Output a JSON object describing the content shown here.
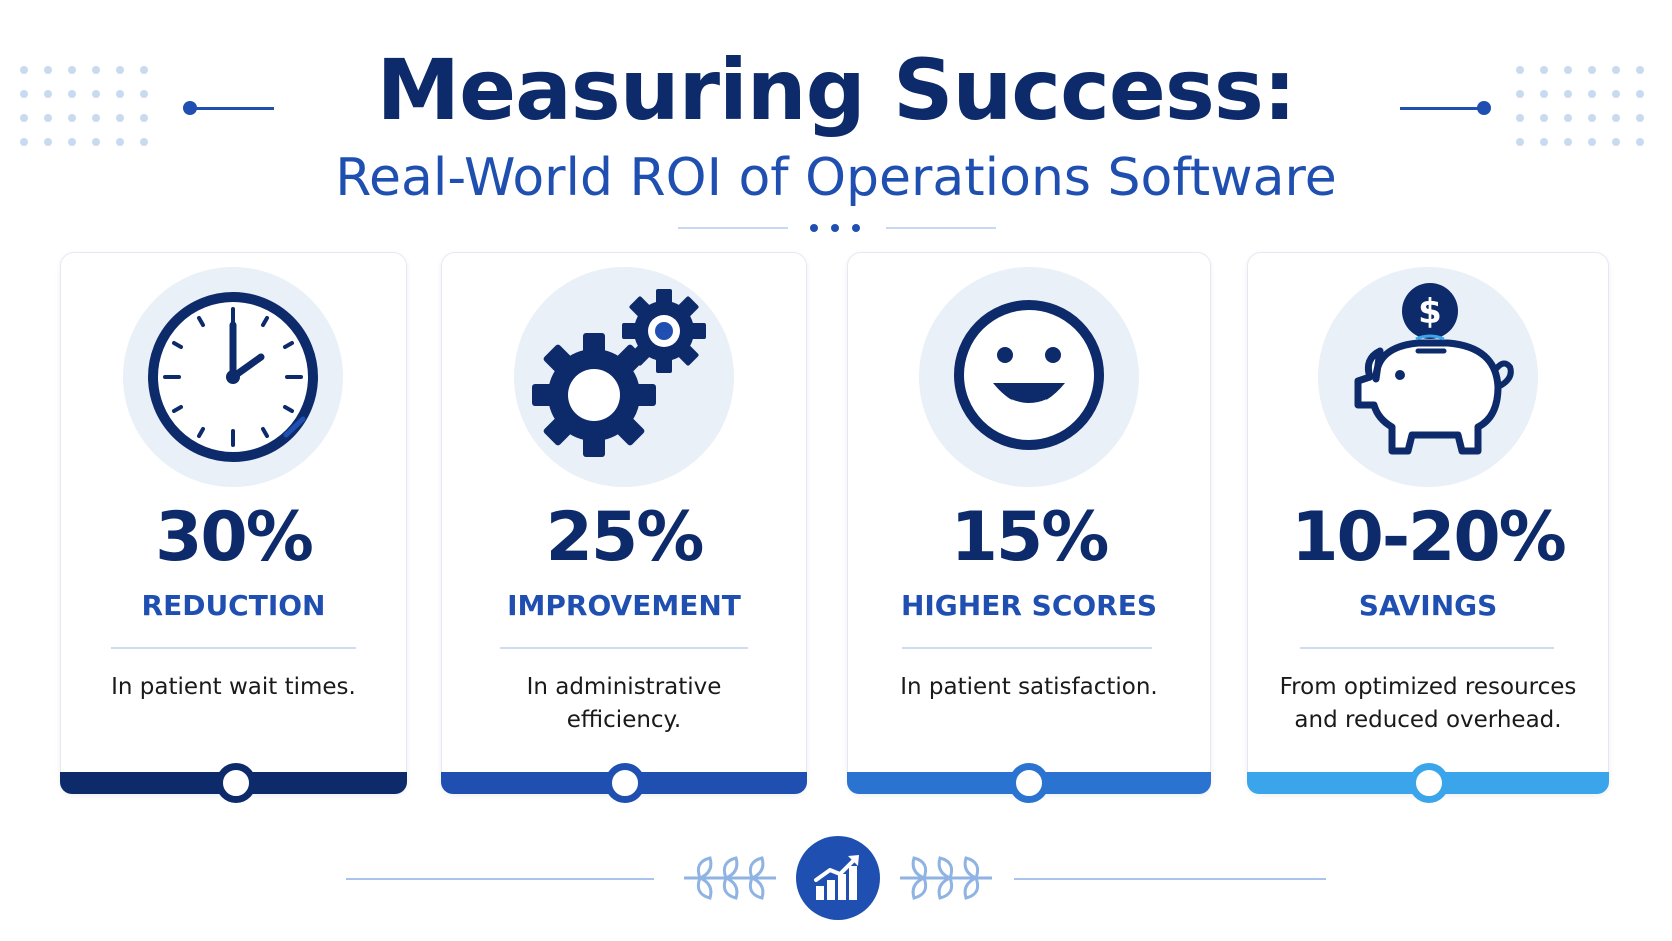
{
  "header": {
    "title": "Measuring Success:",
    "subtitle": "Real-World ROI of Operations Software"
  },
  "colors": {
    "navy": "#0d2a6b",
    "blue": "#1f4fb0",
    "light_circle": "#eaf0f8",
    "bar_colors": [
      "#0d2a6b",
      "#1f4fb0",
      "#2a73d1",
      "#3aa5ea"
    ]
  },
  "cards": [
    {
      "icon": "clock-icon",
      "value": "30%",
      "metric": "REDUCTION",
      "description": "In patient wait times."
    },
    {
      "icon": "gears-icon",
      "value": "25%",
      "metric": "IMPROVEMENT",
      "description": "In administrative efficiency."
    },
    {
      "icon": "smiley-icon",
      "value": "15%",
      "metric": "HIGHER SCORES",
      "description": "In patient satisfaction."
    },
    {
      "icon": "piggy-bank-icon",
      "value": "10-20%",
      "metric": "SAVINGS",
      "description": "From optimized resources and reduced overhead."
    }
  ],
  "footer": {
    "icon": "growth-chart-icon"
  }
}
